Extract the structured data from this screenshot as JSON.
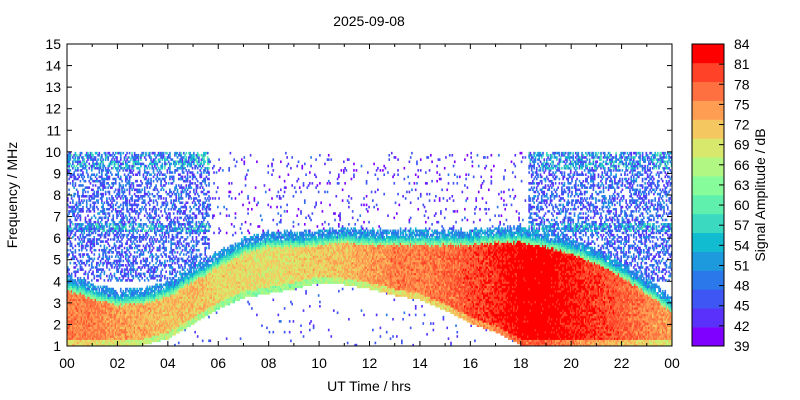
{
  "chart_data": {
    "type": "heatmap",
    "title": "2025-09-08",
    "xlabel": "UT Time / hrs",
    "ylabel": "Frequency / MHz",
    "colorbar_label": "Signal Amplitude / dB",
    "xlim": [
      0,
      24
    ],
    "ylim": [
      1,
      15
    ],
    "x_ticks": [
      "00",
      "02",
      "04",
      "06",
      "08",
      "10",
      "12",
      "14",
      "16",
      "18",
      "20",
      "22",
      "00"
    ],
    "y_ticks": [
      "1",
      "2",
      "3",
      "4",
      "5",
      "6",
      "7",
      "8",
      "9",
      "10",
      "11",
      "12",
      "13",
      "14",
      "15"
    ],
    "colorbar_ticks": [
      "39",
      "42",
      "45",
      "48",
      "51",
      "54",
      "57",
      "60",
      "63",
      "66",
      "69",
      "72",
      "75",
      "78",
      "81",
      "84"
    ],
    "colorbar_range": [
      39,
      84
    ],
    "colormap": [
      "#7f00ff",
      "#5a30fb",
      "#3d56f4",
      "#2a78ea",
      "#1d9ade",
      "#12bcd0",
      "#3ad9c0",
      "#5ff0ae",
      "#86fc9a",
      "#b1f784",
      "#d7e86c",
      "#f4c760",
      "#ff9e52",
      "#ff7040",
      "#ff4228",
      "#ff0000"
    ],
    "profile": {
      "hours": [
        0,
        1,
        2,
        3,
        4,
        5,
        6,
        7,
        8,
        9,
        10,
        11,
        12,
        13,
        14,
        15,
        16,
        17,
        18,
        19,
        20,
        21,
        22,
        23,
        24
      ],
      "upper_edge_mhz": [
        3.9,
        3.5,
        3.2,
        3.3,
        3.6,
        4.3,
        5.0,
        5.6,
        5.9,
        5.9,
        6.0,
        6.1,
        6.0,
        6.0,
        6.0,
        6.0,
        6.0,
        6.1,
        6.1,
        5.9,
        5.6,
        5.1,
        4.5,
        3.7,
        2.9
      ],
      "lower_edge_mhz": [
        1.0,
        1.0,
        1.0,
        1.0,
        1.3,
        2.0,
        2.7,
        3.2,
        3.4,
        3.6,
        3.9,
        3.8,
        3.6,
        3.3,
        3.1,
        2.6,
        2.0,
        1.6,
        1.0,
        1.0,
        1.0,
        1.0,
        1.0,
        1.0,
        1.0
      ],
      "core_amplitude_db": [
        76,
        76,
        74,
        73,
        72,
        72,
        70,
        70,
        69,
        70,
        71,
        72,
        74,
        76,
        76,
        77,
        79,
        81,
        84,
        84,
        82,
        80,
        78,
        76,
        74
      ]
    },
    "scatter_band": {
      "description_hours": [
        [
          0,
          5.6
        ],
        [
          18.3,
          24
        ]
      ],
      "freq_mhz": [
        4.0,
        9.9
      ],
      "amplitude_db": [
        42,
        63
      ]
    },
    "sparse_noise": {
      "freq_mhz": [
        6.0,
        9.9
      ],
      "amplitude_db": [
        39,
        48
      ]
    }
  }
}
